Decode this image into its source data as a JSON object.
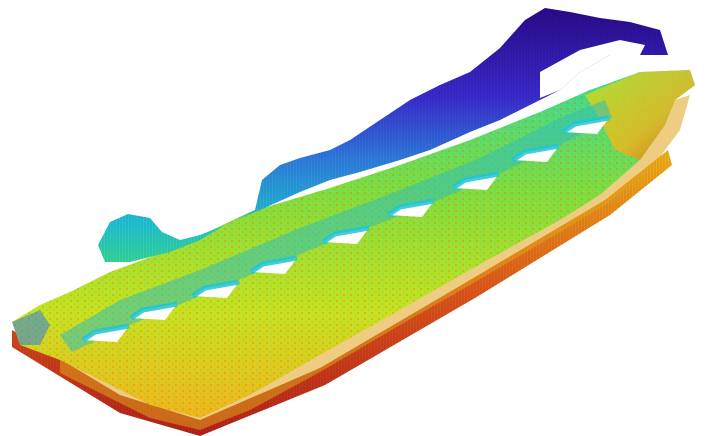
{
  "scene": {
    "subject": "3d-heightmap-surface",
    "colormap": [
      "#2a0a8a",
      "#3b2bd0",
      "#2f7fe0",
      "#21c4d6",
      "#38d89a",
      "#7fdc3c",
      "#c8e21e",
      "#f2b51a",
      "#e0571b",
      "#b5221a"
    ],
    "holes": 9
  }
}
